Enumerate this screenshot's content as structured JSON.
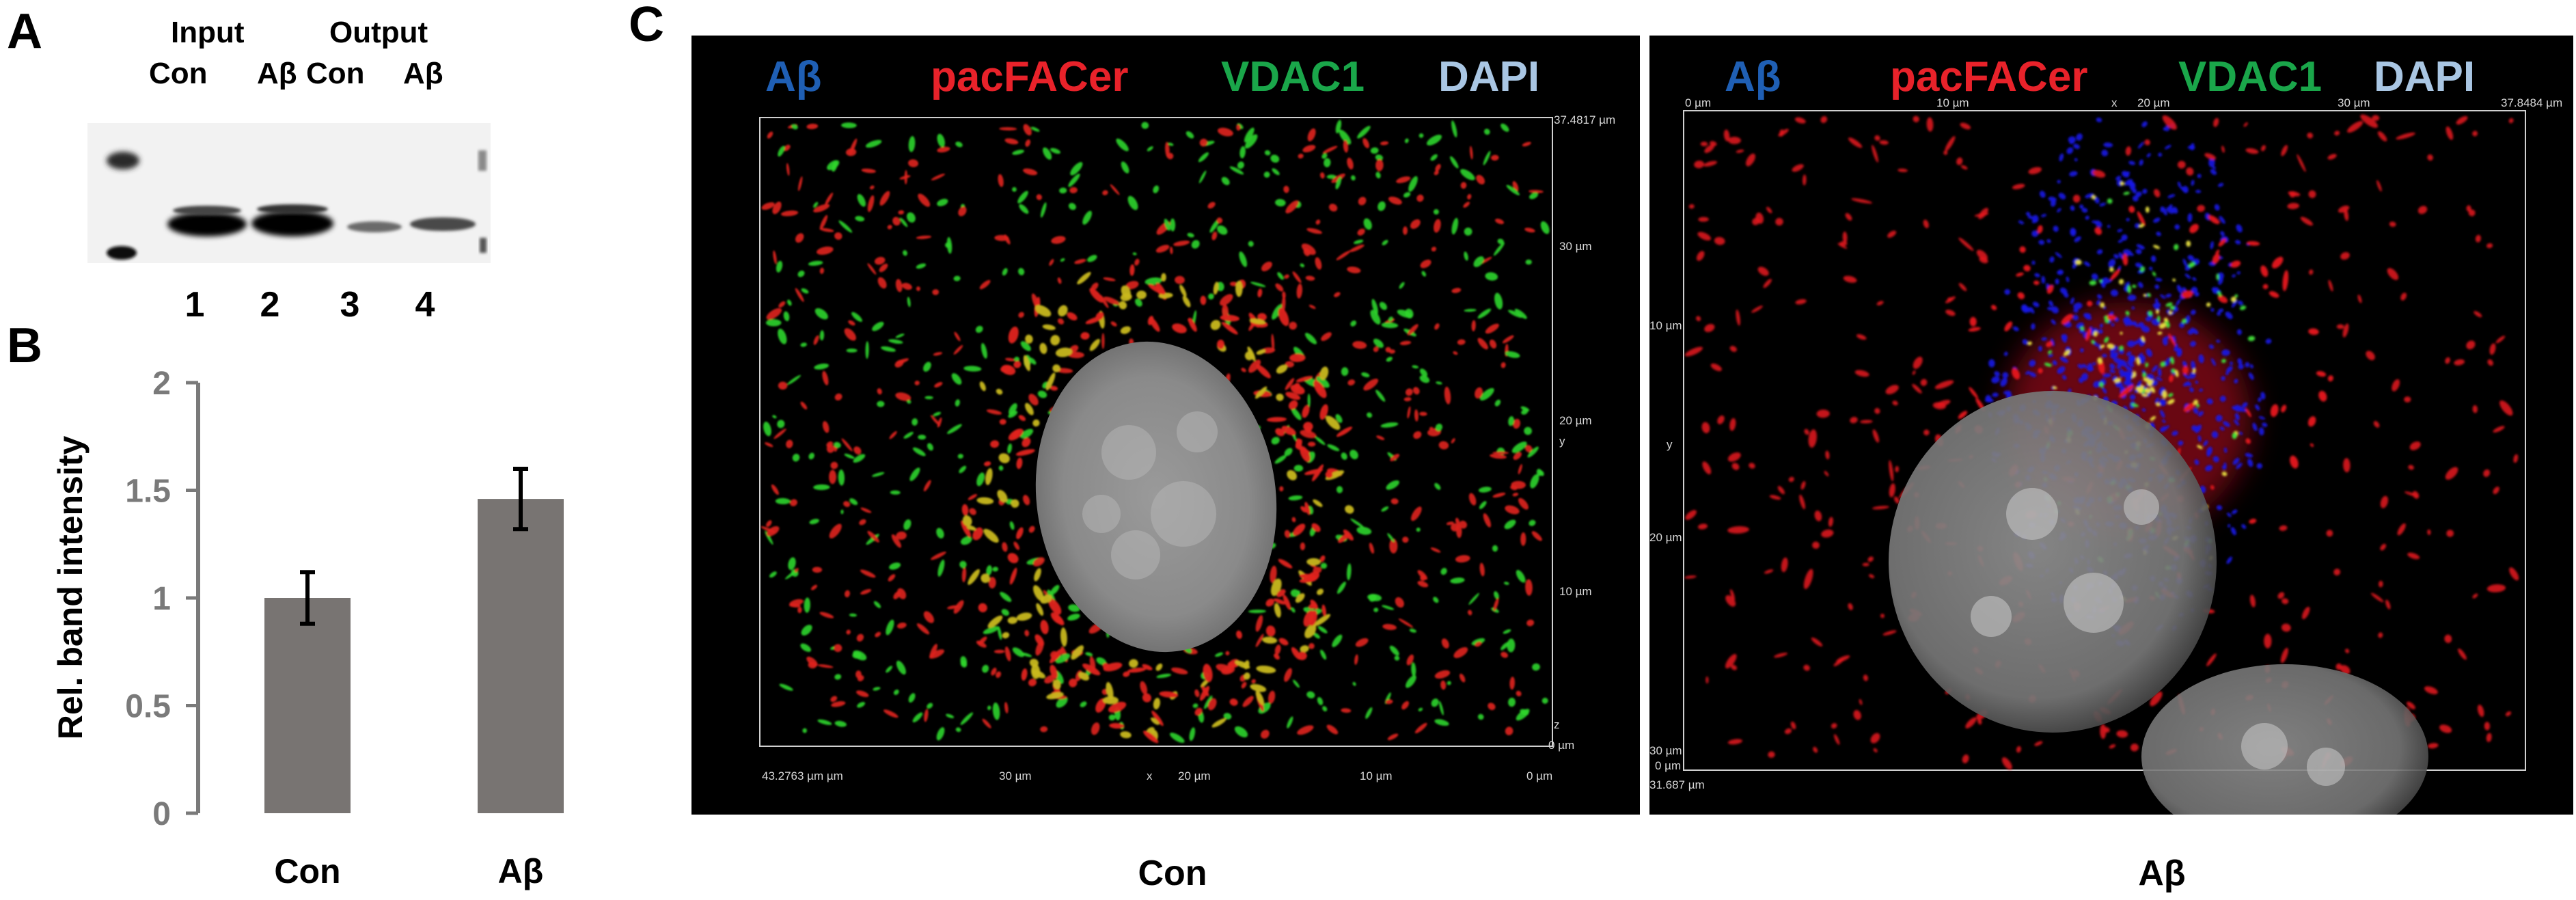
{
  "panels": {
    "a_label": "A",
    "b_label": "B",
    "c_label": "C"
  },
  "western_blot": {
    "group_headers": [
      "Input",
      "Output"
    ],
    "lane_labels": [
      "Con",
      "Aβ",
      "Con",
      "Aβ"
    ],
    "lane_numbers": [
      "1",
      "2",
      "3",
      "4"
    ]
  },
  "chart_data": {
    "type": "bar",
    "categories": [
      "Con",
      "Aβ"
    ],
    "values": [
      1.0,
      1.46
    ],
    "error": [
      0.12,
      0.14
    ],
    "ylabel": "Rel. band intensity",
    "ylim": [
      0,
      2
    ],
    "yticks": [
      "0",
      "0.5",
      "1",
      "1.5",
      "2"
    ],
    "ytick_values": [
      0,
      0.5,
      1,
      1.5,
      2
    ],
    "bar_color": "#787472",
    "axis_color": "#7a7a7a",
    "grid": false,
    "legend": "none"
  },
  "microscopy": {
    "legend": [
      {
        "text": "Aβ",
        "color": "#1f5fb4"
      },
      {
        "text": "pacFACer",
        "color": "#e8222a"
      },
      {
        "text": "VDAC1",
        "color": "#1aa64a"
      },
      {
        "text": "DAPI",
        "color": "#a9c6e3"
      }
    ],
    "con": {
      "caption": "Con",
      "scale_top_right": "37.4817 µm",
      "scale_right": [
        "30 µm",
        "20 µm",
        "y",
        "10 µm",
        "z",
        "0 µm"
      ],
      "scale_bottom": [
        "43.2763 µm µm",
        "30 µm",
        "x",
        "20 µm",
        "10 µm",
        "0 µm"
      ]
    },
    "abeta": {
      "caption": "Aβ",
      "scale_top": [
        "0 µm",
        "10 µm",
        "x",
        "20 µm",
        "30 µm",
        "37.8484 µm"
      ],
      "scale_left": [
        "10 µm",
        "y",
        "20 µm",
        "30 µm",
        "0 µm",
        "31.687 µm"
      ]
    }
  }
}
